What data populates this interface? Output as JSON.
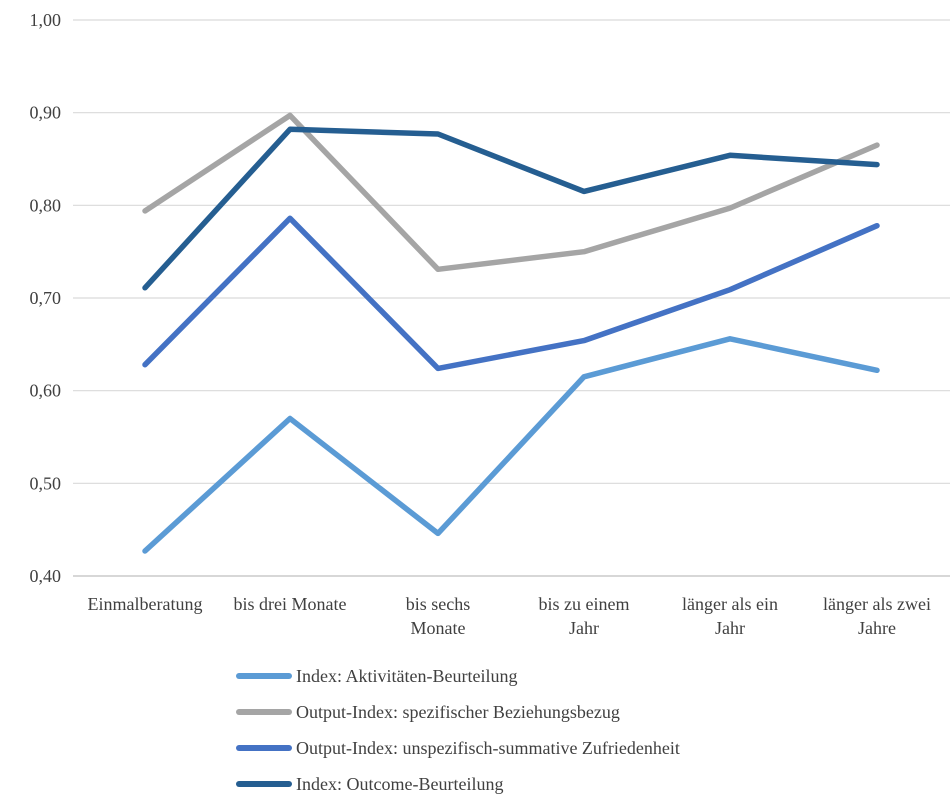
{
  "chart_data": {
    "type": "line",
    "categories": [
      [
        "Einmalberatung"
      ],
      [
        "bis drei Monate"
      ],
      [
        "bis sechs",
        "Monate"
      ],
      [
        "bis zu einem",
        "Jahr"
      ],
      [
        "länger als ein",
        "Jahr"
      ],
      [
        "länger als zwei",
        "Jahre"
      ]
    ],
    "y_ticks": [
      "0,40",
      "0,50",
      "0,60",
      "0,70",
      "0,80",
      "0,90",
      "1,00"
    ],
    "ylim": [
      0.4,
      1.0
    ],
    "grid": true,
    "legend_position": "bottom",
    "series": [
      {
        "name": "Index: Aktivitäten-Beurteilung",
        "color": "#5b9bd5",
        "values": [
          0.427,
          0.57,
          0.446,
          0.615,
          0.656,
          0.622
        ]
      },
      {
        "name": "Output-Index: spezifischer Beziehungsbezug",
        "color": "#a5a5a5",
        "values": [
          0.794,
          0.897,
          0.731,
          0.75,
          0.797,
          0.865
        ]
      },
      {
        "name": "Output-Index: unspezifisch-summative Zufriedenheit",
        "color": "#4472c4",
        "values": [
          0.628,
          0.786,
          0.624,
          0.654,
          0.709,
          0.778
        ]
      },
      {
        "name": "Index: Outcome-Beurteilung",
        "color": "#255e91",
        "values": [
          0.711,
          0.882,
          0.877,
          0.815,
          0.854,
          0.844
        ]
      }
    ]
  }
}
